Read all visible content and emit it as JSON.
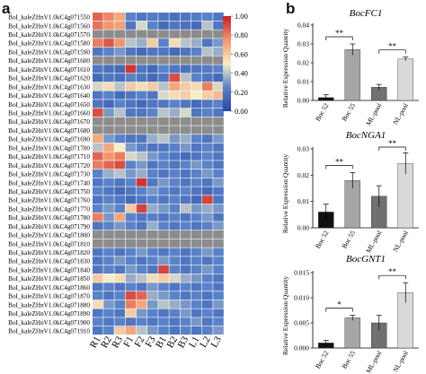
{
  "panels": {
    "a": "a",
    "b": "b"
  },
  "heatmap": {
    "type": "heatmap",
    "rows": [
      "BoI_kaleZHnV1.0kC4g071550",
      "BoI_kaleZHnV1.0kC4g071560",
      "BoI_kaleZHnV1.0kC4g071570",
      "BoI_kaleZHnV1.0kC4g071580",
      "BoI_kaleZHnV1.0kC4g071590",
      "BoI_kaleZHnV1.0kC4g071600",
      "BoI_kaleZHnV1.0kC4g071610",
      "BoI_kaleZHnV1.0kC4g071620",
      "BoI_kaleZHnV1.0kC4g071630",
      "BoI_kaleZHnV1.0kC4g071640",
      "BoI_kaleZHnV1.0kC4g071650",
      "BoI_kaleZHnV1.0kC4g071660",
      "BoI_kaleZHnV1.0kC4g071670",
      "BoI_kaleZHnV1.0kC4g071680",
      "BoI_kaleZHnV1.0kC4g071690",
      "BoI_kaleZHnV1.0kC4g071700",
      "BoI_kaleZHnV1.0kC4g071710",
      "BoI_kaleZHnV1.0kC4g071720",
      "BoI_kaleZHnV1.0kC4g071730",
      "BoI_kaleZHnV1.0kC4g071740",
      "BoI_kaleZHnV1.0kC4g071750",
      "BoI_kaleZHnV1.0kC4g071760",
      "BoI_kaleZHnV1.0kC4g071770",
      "BoI_kaleZHnV1.0kC4g071780",
      "BoI_kaleZHnV1.0kC4g071790",
      "BoI_kaleZHnV1.0kC4g071800",
      "BoI_kaleZHnV1.0kC4g071810",
      "BoI_kaleZHnV1.0kC4g071820",
      "BoI_kaleZHnV1.0kC4g071830",
      "BoI_kaleZHnV1.0kC4g071840",
      "BoI_kaleZHnV1.0kC4g071850",
      "BoI_kaleZHnV1.0kC4g071860",
      "BoI_kaleZHnV1.0kC4g071870",
      "BoI_kaleZHnV1.0kC4g071880",
      "BoI_kaleZHnV1.0kC4g071890",
      "BoI_kaleZHnV1.0kC4g071900",
      "BoI_kaleZHnV1.0kC4g071910"
    ],
    "columns": [
      "R1",
      "R2",
      "R3",
      "F1",
      "F2",
      "F3",
      "B1",
      "B2",
      "B3",
      "L1",
      "L2",
      "L3"
    ],
    "colorbar": {
      "min": 0,
      "max": 1,
      "ticks": [
        "1.00",
        "0.80",
        "0.60",
        "0.40",
        "0.20",
        "0.00"
      ]
    },
    "missing_color": "#8c8c8c",
    "values": [
      [
        0.85,
        0.78,
        0.7,
        0.25,
        0.2,
        0.22,
        0.2,
        0.18,
        0.2,
        0.22,
        0.25,
        0.2
      ],
      [
        0.82,
        0.75,
        0.72,
        0.2,
        0.45,
        0.25,
        0.15,
        0.2,
        0.18,
        0.15,
        0.4,
        0.2
      ],
      [
        -1,
        -1,
        -1,
        -1,
        -1,
        -1,
        -1,
        -1,
        -1,
        -1,
        -1,
        -1
      ],
      [
        0.8,
        0.88,
        0.75,
        0.4,
        0.35,
        0.6,
        0.25,
        0.55,
        0.4,
        0.35,
        0.2,
        0.3
      ],
      [
        0.2,
        0.25,
        0.3,
        0.2,
        0.15,
        0.2,
        0.2,
        0.15,
        0.2,
        0.25,
        0.4,
        0.35
      ],
      [
        -1,
        -1,
        -1,
        -1,
        -1,
        -1,
        -1,
        -1,
        -1,
        -1,
        -1,
        -1
      ],
      [
        0.2,
        0.18,
        0.15,
        0.95,
        0.2,
        0.15,
        0.25,
        0.2,
        0.18,
        0.2,
        0.22,
        0.25
      ],
      [
        0.15,
        0.2,
        0.18,
        0.25,
        0.2,
        0.15,
        0.2,
        0.9,
        0.4,
        0.25,
        0.2,
        0.15
      ],
      [
        0.45,
        0.55,
        0.4,
        0.6,
        0.55,
        0.6,
        0.4,
        0.7,
        0.6,
        0.55,
        0.8,
        0.45
      ],
      [
        0.2,
        0.25,
        0.15,
        0.2,
        0.25,
        0.2,
        0.45,
        0.55,
        0.6,
        0.5,
        0.6,
        0.65
      ],
      [
        0.2,
        0.15,
        0.25,
        0.2,
        0.15,
        0.2,
        0.2,
        0.25,
        0.2,
        0.15,
        0.2,
        0.25
      ],
      [
        0.9,
        0.3,
        0.4,
        0.2,
        0.2,
        0.25,
        0.4,
        0.35,
        0.45,
        0.2,
        0.25,
        0.2
      ],
      [
        -1,
        -1,
        -1,
        -1,
        -1,
        -1,
        -1,
        -1,
        -1,
        -1,
        -1,
        -1
      ],
      [
        -1,
        -1,
        -1,
        -1,
        -1,
        -1,
        -1,
        -1,
        -1,
        -1,
        -1,
        -1
      ],
      [
        0.7,
        0.3,
        0.25,
        0.2,
        0.2,
        0.35,
        0.4,
        0.3,
        0.35,
        0.25,
        0.2,
        0.3
      ],
      [
        0.4,
        0.7,
        0.5,
        0.3,
        0.25,
        0.2,
        0.2,
        0.25,
        0.3,
        0.2,
        0.25,
        0.2
      ],
      [
        0.85,
        0.75,
        0.8,
        0.45,
        0.4,
        0.3,
        0.25,
        0.2,
        0.15,
        0.2,
        0.25,
        0.2
      ],
      [
        0.8,
        0.85,
        0.9,
        0.25,
        0.3,
        0.2,
        0.25,
        0.2,
        0.25,
        0.3,
        0.25,
        0.2
      ],
      [
        0.25,
        0.35,
        0.4,
        0.3,
        0.35,
        0.25,
        0.2,
        0.25,
        0.2,
        0.25,
        0.3,
        0.25
      ],
      [
        0.2,
        0.25,
        0.2,
        0.25,
        0.95,
        0.2,
        0.3,
        0.25,
        0.2,
        0.25,
        0.2,
        0.3
      ],
      [
        0.25,
        0.2,
        0.15,
        0.2,
        0.25,
        0.3,
        0.25,
        0.2,
        0.25,
        0.2,
        0.15,
        0.2
      ],
      [
        0.2,
        0.25,
        0.2,
        0.15,
        0.2,
        0.25,
        0.2,
        0.25,
        0.2,
        0.15,
        0.92,
        0.2
      ],
      [
        0.25,
        0.3,
        0.25,
        0.6,
        0.92,
        0.35,
        0.3,
        0.25,
        0.4,
        0.3,
        0.35,
        0.3
      ],
      [
        0.8,
        0.3,
        0.7,
        0.25,
        0.2,
        0.25,
        0.2,
        0.25,
        0.2,
        0.25,
        0.3,
        0.2
      ],
      [
        0.2,
        0.25,
        0.3,
        0.25,
        0.2,
        0.35,
        0.25,
        0.2,
        0.25,
        0.2,
        0.25,
        0.3
      ],
      [
        -1,
        -1,
        -1,
        -1,
        -1,
        -1,
        -1,
        -1,
        -1,
        -1,
        -1,
        -1
      ],
      [
        -1,
        -1,
        -1,
        -1,
        -1,
        -1,
        -1,
        -1,
        -1,
        -1,
        -1,
        -1
      ],
      [
        0.2,
        0.25,
        0.2,
        0.25,
        0.3,
        0.25,
        0.2,
        0.25,
        0.2,
        0.25,
        0.3,
        0.25
      ],
      [
        0.2,
        0.25,
        0.3,
        0.25,
        0.2,
        0.25,
        0.3,
        0.25,
        0.2,
        0.25,
        0.2,
        0.25
      ],
      [
        0.2,
        0.25,
        0.2,
        0.3,
        0.25,
        0.2,
        0.92,
        0.25,
        0.2,
        0.25,
        0.3,
        0.25
      ],
      [
        0.6,
        0.5,
        0.55,
        0.35,
        0.4,
        0.55,
        0.6,
        0.45,
        0.35,
        0.3,
        0.25,
        0.2
      ],
      [
        0.2,
        0.25,
        0.2,
        0.25,
        0.2,
        0.3,
        0.25,
        0.2,
        0.25,
        0.2,
        0.25,
        0.2
      ],
      [
        0.25,
        0.2,
        0.25,
        0.9,
        0.85,
        0.35,
        0.3,
        0.25,
        0.2,
        0.25,
        0.2,
        0.25
      ],
      [
        0.55,
        0.3,
        0.25,
        0.8,
        0.7,
        0.3,
        0.4,
        0.35,
        0.3,
        0.25,
        0.2,
        0.3
      ],
      [
        0.2,
        0.25,
        0.2,
        0.6,
        0.3,
        0.25,
        0.2,
        0.25,
        0.3,
        0.2,
        0.25,
        0.2
      ],
      [
        0.25,
        0.2,
        0.25,
        0.2,
        0.25,
        0.2,
        0.25,
        0.2,
        0.25,
        0.3,
        0.2,
        0.25
      ],
      [
        0.2,
        0.25,
        0.6,
        0.7,
        0.4,
        0.3,
        0.25,
        0.2,
        0.25,
        0.2,
        0.25,
        0.3
      ]
    ]
  },
  "bar_color": "#b0b0b0",
  "bar_charts": [
    {
      "type": "bar",
      "title": "BocFC1",
      "ylabel": "Relative Expression Quantity",
      "categories": [
        "Boc 52",
        "Boc 55",
        "ML-pool",
        "NL-pool"
      ],
      "values": [
        0.0015,
        0.027,
        0.007,
        0.022
      ],
      "errors": [
        0.0015,
        0.003,
        0.0015,
        0.001
      ],
      "fills": [
        "#111111",
        "#a6a6a6",
        "#707070",
        "#d9d9d9"
      ],
      "ylim": [
        0,
        0.04
      ],
      "yticks": [
        "0.00",
        "0.01",
        "0.02",
        "0.03",
        "0.04"
      ],
      "significance": [
        {
          "from": 0,
          "to": 1,
          "label": "**"
        },
        {
          "from": 2,
          "to": 3,
          "label": "**"
        }
      ]
    },
    {
      "type": "bar",
      "title": "BocNGA1",
      "ylabel": "Relative Expression Quantity",
      "categories": [
        "Boc 52",
        "Boc 55",
        "ML-pool",
        "NL-pool"
      ],
      "values": [
        0.006,
        0.018,
        0.012,
        0.0245
      ],
      "errors": [
        0.003,
        0.003,
        0.004,
        0.004
      ],
      "fills": [
        "#111111",
        "#a6a6a6",
        "#707070",
        "#d9d9d9"
      ],
      "ylim": [
        0,
        0.03
      ],
      "yticks": [
        "0.00",
        "0.01",
        "0.02",
        "0.03"
      ],
      "significance": [
        {
          "from": 0,
          "to": 1,
          "label": "**"
        },
        {
          "from": 2,
          "to": 3,
          "label": "**"
        }
      ]
    },
    {
      "type": "bar",
      "title": "BocGNT1",
      "ylabel": "Relative Expression Quantity",
      "categories": [
        "Boc 52",
        "Boc 55",
        "ML-pool",
        "NL-pool"
      ],
      "values": [
        0.001,
        0.006,
        0.005,
        0.011
      ],
      "errors": [
        0.0005,
        0.0005,
        0.0015,
        0.002
      ],
      "fills": [
        "#111111",
        "#a6a6a6",
        "#707070",
        "#d9d9d9"
      ],
      "ylim": [
        0,
        0.015
      ],
      "yticks": [
        "0.000",
        "0.005",
        "0.010",
        "0.015"
      ],
      "significance": [
        {
          "from": 0,
          "to": 1,
          "label": "*"
        },
        {
          "from": 2,
          "to": 3,
          "label": "**"
        }
      ]
    }
  ]
}
